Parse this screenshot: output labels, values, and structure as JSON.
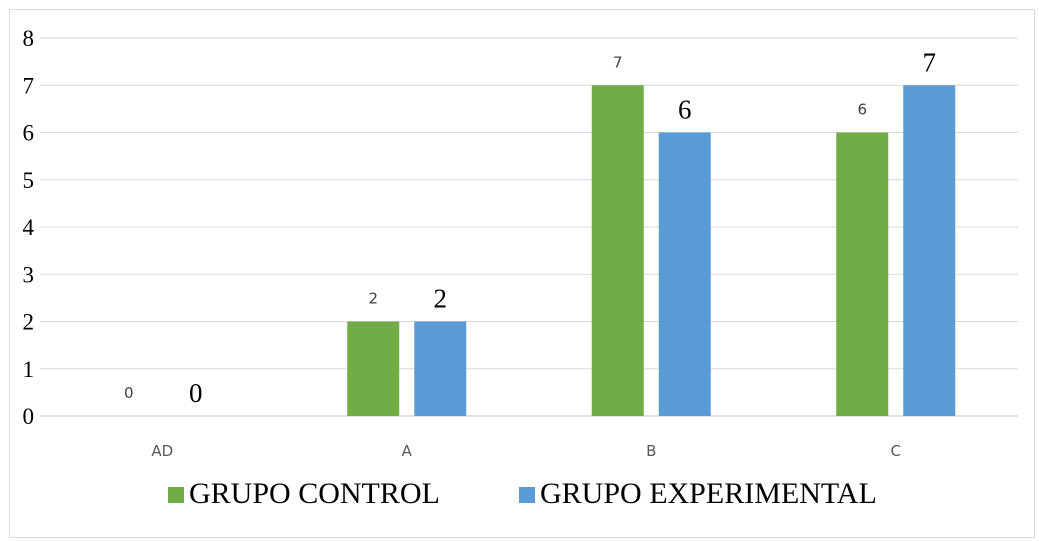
{
  "chart_data": {
    "type": "bar",
    "categories": [
      "AD",
      "A",
      "B",
      "C"
    ],
    "series": [
      {
        "name": "GRUPO CONTROL",
        "values": [
          0,
          2,
          7,
          6
        ],
        "color": "#70ad47"
      },
      {
        "name": "GRUPO EXPERIMENTAL",
        "values": [
          0,
          2,
          6,
          7
        ],
        "color": "#5b9bd5"
      }
    ],
    "ylim": [
      0,
      8
    ],
    "yticks": [
      "0",
      "1",
      "2",
      "3",
      "4",
      "5",
      "6",
      "7",
      "8"
    ],
    "grid": true,
    "legend_position": "bottom"
  }
}
